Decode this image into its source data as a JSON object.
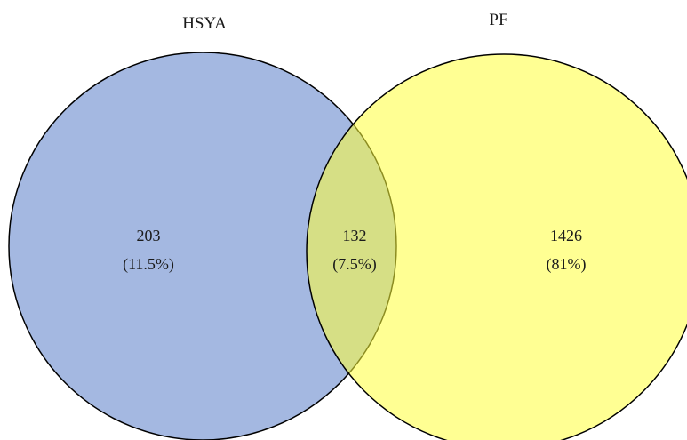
{
  "venn": {
    "sets": [
      {
        "label": "HSYA",
        "fill": "#4a72c4",
        "stroke": "#000000"
      },
      {
        "label": "PF",
        "fill": "#ffff3a",
        "stroke": "#000000"
      }
    ],
    "regions": [
      {
        "id": "hsya_only",
        "sets": [
          "HSYA"
        ],
        "count": "203",
        "percent": "(11.5%)"
      },
      {
        "id": "intersection",
        "sets": [
          "HSYA",
          "PF"
        ],
        "count": "132",
        "percent": "(7.5%)"
      },
      {
        "id": "pf_only",
        "sets": [
          "PF"
        ],
        "count": "1426",
        "percent": "(81%)"
      }
    ]
  }
}
